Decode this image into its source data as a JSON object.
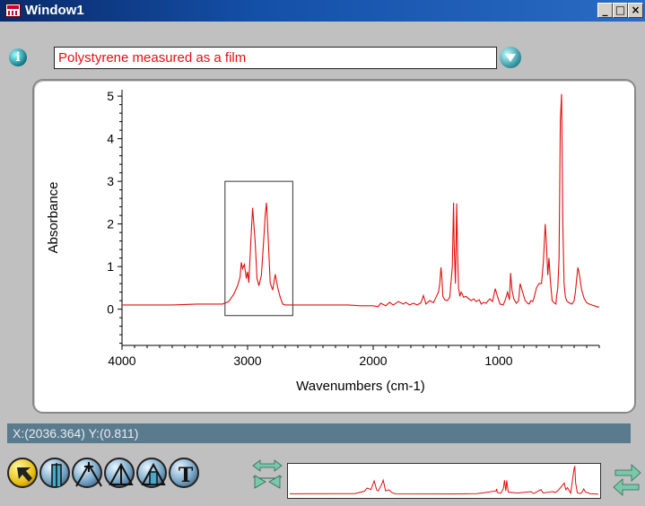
{
  "window": {
    "title": "Window1",
    "minimize_label": "_",
    "maximize_label": "□",
    "close_label": "×"
  },
  "description": {
    "value": "Polystyrene measured as a film",
    "info_icon": "info-icon",
    "dropdown_icon": "chevron-down-icon"
  },
  "status_readout": "X:(2036.364) Y:(0.811)",
  "toolbar": {
    "tools": [
      {
        "name": "pointer-tool",
        "icon": "arrow-pointer-icon",
        "selected": true
      },
      {
        "name": "region-tool",
        "icon": "region-icon",
        "selected": false
      },
      {
        "name": "peak-label-tool",
        "icon": "peak-cross-icon",
        "selected": false
      },
      {
        "name": "peak-tool",
        "icon": "peak-icon",
        "selected": false
      },
      {
        "name": "peak-area-tool",
        "icon": "peak-area-icon",
        "selected": false
      },
      {
        "name": "text-tool",
        "icon": "text-icon",
        "label": "T",
        "selected": false
      }
    ]
  },
  "chart_data": {
    "type": "line",
    "xlabel": "Wavenumbers (cm-1)",
    "ylabel": "Absorbance",
    "xlim": [
      4000,
      200
    ],
    "ylim": [
      -0.85,
      5.15
    ],
    "x_ticks": [
      "4000",
      "3000",
      "2000",
      "1000"
    ],
    "y_ticks": [
      "0",
      "1",
      "2",
      "3",
      "4",
      "5"
    ],
    "line_color": "#e01010",
    "grid": false,
    "series": [
      {
        "x": [
          4000,
          3800,
          3600,
          3400,
          3200,
          3150,
          3110,
          3080,
          3060,
          3050,
          3040,
          3026,
          3010,
          3000,
          2990,
          2975,
          2960,
          2940,
          2925,
          2910,
          2890,
          2870,
          2860,
          2849,
          2835,
          2820,
          2800,
          2780,
          2760,
          2740,
          2720,
          2700,
          2650,
          2600,
          2500,
          2400,
          2300,
          2200,
          2100,
          2000,
          1960,
          1940,
          1900,
          1870,
          1840,
          1800,
          1760,
          1740,
          1710,
          1680,
          1650,
          1620,
          1600,
          1580,
          1550,
          1520,
          1500,
          1480,
          1470,
          1460,
          1452,
          1445,
          1430,
          1410,
          1390,
          1370,
          1360,
          1355,
          1345,
          1335,
          1328,
          1320,
          1310,
          1300,
          1290,
          1280,
          1260,
          1240,
          1220,
          1200,
          1180,
          1155,
          1140,
          1120,
          1100,
          1085,
          1070,
          1050,
          1028,
          1010,
          990,
          965,
          950,
          930,
          915,
          906,
          895,
          880,
          860,
          842,
          830,
          810,
          790,
          770,
          757,
          745,
          730,
          720,
          700,
          680,
          660,
          645,
          630,
          620,
          610,
          600,
          590,
          575,
          560,
          545,
          540,
          530,
          520,
          510,
          500,
          490,
          480,
          470,
          460,
          440,
          420,
          410,
          400,
          390,
          380,
          370,
          360,
          340,
          320,
          300,
          280,
          260,
          240,
          220,
          200
        ],
        "values": [
          0.1,
          0.1,
          0.1,
          0.12,
          0.12,
          0.18,
          0.35,
          0.55,
          0.75,
          1.1,
          0.95,
          1.05,
          0.72,
          0.88,
          0.62,
          1.55,
          2.38,
          1.6,
          0.72,
          0.55,
          0.8,
          1.7,
          2.2,
          2.5,
          1.6,
          0.62,
          0.45,
          0.82,
          0.5,
          0.28,
          0.12,
          0.1,
          0.1,
          0.1,
          0.1,
          0.1,
          0.1,
          0.1,
          0.08,
          0.08,
          0.06,
          0.14,
          0.08,
          0.16,
          0.1,
          0.18,
          0.12,
          0.16,
          0.1,
          0.14,
          0.1,
          0.15,
          0.32,
          0.12,
          0.2,
          0.15,
          0.28,
          0.4,
          0.6,
          0.98,
          0.7,
          0.3,
          0.22,
          0.2,
          0.28,
          1.0,
          2.5,
          1.5,
          0.6,
          2.48,
          1.3,
          0.5,
          0.3,
          0.4,
          0.35,
          0.28,
          0.3,
          0.25,
          0.2,
          0.24,
          0.18,
          0.22,
          0.12,
          0.16,
          0.14,
          0.2,
          0.24,
          0.18,
          0.48,
          0.3,
          0.12,
          0.1,
          0.2,
          0.4,
          0.22,
          0.85,
          0.45,
          0.24,
          0.14,
          0.2,
          0.6,
          0.4,
          0.2,
          0.14,
          0.12,
          0.2,
          0.18,
          0.26,
          0.5,
          0.6,
          0.6,
          1.1,
          2.0,
          1.5,
          0.8,
          1.2,
          0.7,
          0.2,
          0.15,
          0.12,
          0.3,
          0.5,
          1.2,
          4.4,
          5.05,
          2.0,
          0.6,
          0.3,
          0.2,
          0.15,
          0.12,
          0.15,
          0.2,
          0.4,
          0.7,
          0.98,
          0.85,
          0.45,
          0.25,
          0.15,
          0.12,
          0.1,
          0.08,
          0.06,
          0.05
        ]
      }
    ],
    "selection_box": {
      "x_range": [
        3180,
        2640
      ],
      "y_range": [
        -0.15,
        3.0
      ]
    }
  },
  "overview": {
    "series": [
      {
        "x": [
          4000,
          3200,
          3080,
          3050,
          3026,
          3000,
          2960,
          2930,
          2910,
          2870,
          2849,
          2820,
          2780,
          2740,
          2700,
          2000,
          1700,
          1600,
          1460,
          1452,
          1445,
          1400,
          1370,
          1355,
          1340,
          1328,
          1310,
          1200,
          1028,
          1000,
          906,
          880,
          757,
          740,
          700,
          620,
          600,
          580,
          540,
          500,
          490,
          480,
          460,
          420,
          400,
          380,
          360,
          300,
          200
        ],
        "values": [
          0.1,
          0.12,
          0.55,
          1.1,
          1.0,
          0.85,
          2.38,
          0.8,
          0.6,
          1.7,
          2.5,
          0.62,
          0.82,
          0.28,
          0.1,
          0.08,
          0.12,
          0.3,
          0.6,
          0.98,
          0.3,
          0.22,
          1.0,
          2.5,
          0.6,
          2.48,
          0.4,
          0.24,
          0.48,
          0.12,
          0.85,
          0.24,
          0.5,
          0.3,
          0.6,
          2.0,
          0.8,
          1.2,
          0.2,
          4.4,
          5.05,
          2.0,
          0.3,
          0.12,
          0.4,
          0.98,
          0.45,
          0.12,
          0.05
        ]
      }
    ]
  }
}
